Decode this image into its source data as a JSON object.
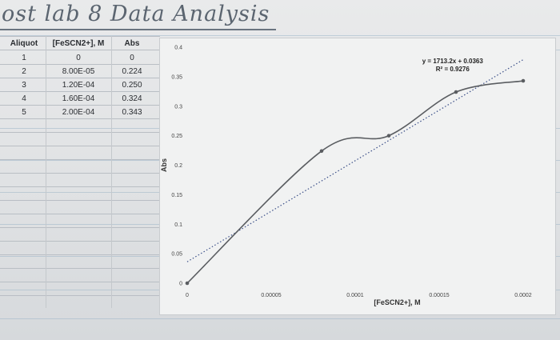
{
  "heading": "ost lab 8 Data Analysis",
  "table": {
    "headers": [
      "Aliquot",
      "[FeSCN2+], M",
      "Abs"
    ],
    "rows": [
      [
        "1",
        "0",
        "0"
      ],
      [
        "2",
        "8.00E-05",
        "0.224"
      ],
      [
        "3",
        "1.20E-04",
        "0.250"
      ],
      [
        "4",
        "1.60E-04",
        "0.324"
      ],
      [
        "5",
        "2.00E-04",
        "0.343"
      ]
    ]
  },
  "chart_data": {
    "type": "scatter",
    "xlabel": "[FeSCN2+], M",
    "ylabel": "Abs",
    "xlim": [
      0,
      0.0002
    ],
    "ylim": [
      0,
      0.4
    ],
    "x_ticks": [
      "0",
      "0.00005",
      "0.0001",
      "0.00015",
      "0.0002"
    ],
    "y_ticks": [
      "0",
      "0.05",
      "0.1",
      "0.15",
      "0.2",
      "0.25",
      "0.3",
      "0.35",
      "0.4"
    ],
    "x": [
      0,
      8e-05,
      0.00012,
      0.00016,
      0.0002
    ],
    "y": [
      0,
      0.224,
      0.25,
      0.324,
      0.343
    ],
    "connect": "smoothed line with markers",
    "trendline": {
      "type": "linear",
      "slope": 1713.2,
      "intercept": 0.0363,
      "equation": "y = 1713.2x + 0.0363",
      "r_squared": "R² = 0.9276"
    },
    "series_color": "#5a5d61",
    "trend_color": "#3b4f88",
    "grid": false
  }
}
